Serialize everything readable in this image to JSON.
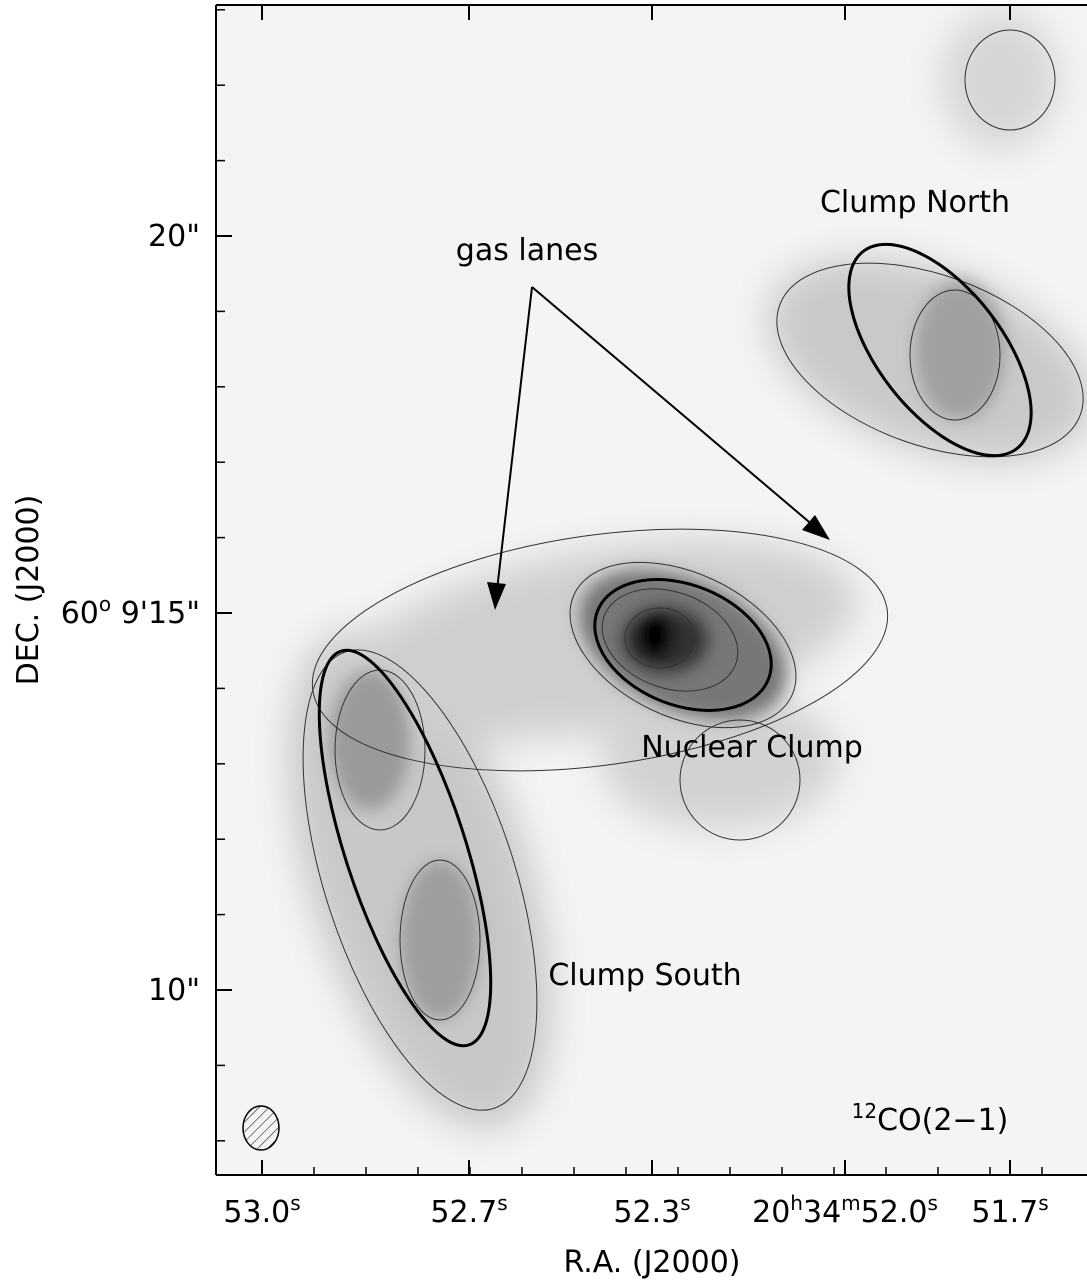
{
  "axes": {
    "xlabel": "R.A. (J2000)",
    "ylabel": "DEC. (J2000)",
    "xticks": [
      [
        {
          "t": "53.0"
        },
        {
          "t": "s",
          "sup": true
        }
      ],
      [
        {
          "t": "52.7"
        },
        {
          "t": "s",
          "sup": true
        }
      ],
      [
        {
          "t": "52.3"
        },
        {
          "t": "s",
          "sup": true
        }
      ],
      [
        {
          "t": "20"
        },
        {
          "t": "h",
          "sup": true
        },
        {
          "t": "34"
        },
        {
          "t": "m",
          "sup": true
        },
        {
          "t": "52.0"
        },
        {
          "t": "s",
          "sup": true
        }
      ],
      [
        {
          "t": "51.7"
        },
        {
          "t": "s",
          "sup": true
        }
      ]
    ],
    "yticks": [
      [
        {
          "t": "20\""
        }
      ],
      [
        {
          "t": "60"
        },
        {
          "t": "o",
          "sup": true
        },
        {
          "t": " 9'15\""
        }
      ],
      [
        {
          "t": "10\""
        }
      ]
    ]
  },
  "annotations": {
    "gas_lanes": "gas lanes",
    "clump_north": "Clump North",
    "nuclear_clump": "Nuclear Clump",
    "clump_south": "Clump South",
    "line": [
      {
        "t": "12",
        "sup": true
      },
      {
        "t": "CO(2−1)"
      }
    ]
  }
}
